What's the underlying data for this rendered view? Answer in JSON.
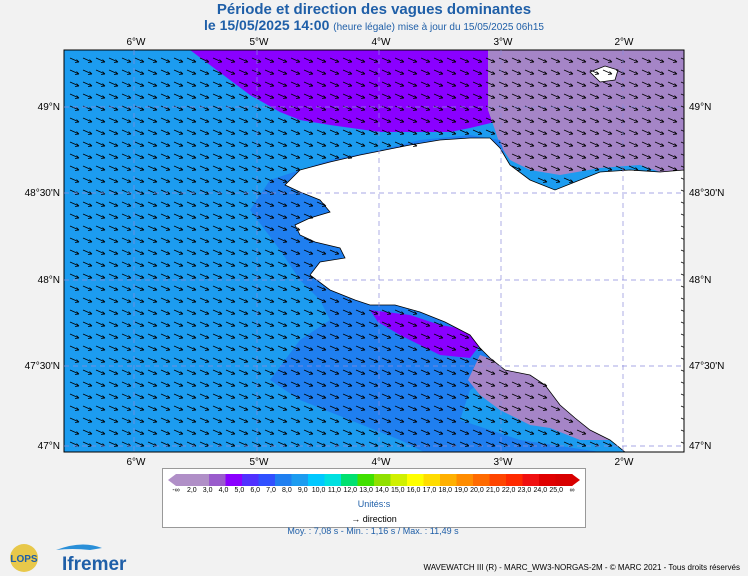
{
  "header": {
    "title": "Période et direction des vagues dominantes",
    "date_line": "le 15/05/2025 14:00",
    "update_note": "(heure légale) mise à jour du 15/05/2025 06h15"
  },
  "map": {
    "longitude_labels": [
      "6°W",
      "5°W",
      "4°W",
      "3°W",
      "2°W"
    ],
    "latitude_labels": [
      "49°N",
      "48°30'N",
      "48°N",
      "47°30'N",
      "47°N"
    ]
  },
  "colorbar": {
    "labels": [
      "-∞",
      "2,0",
      "3,0",
      "4,0",
      "5,0",
      "6,0",
      "7,0",
      "8,0",
      "9,0",
      "10,0",
      "11,0",
      "12,0",
      "13,0",
      "14,0",
      "15,0",
      "16,0",
      "17,0",
      "18,0",
      "19,0",
      "20,0",
      "21,0",
      "22,0",
      "23,0",
      "24,0",
      "25,0",
      "∞"
    ],
    "colors": [
      "#b08fc7",
      "#b08fc7",
      "#9a5ccc",
      "#8a00ff",
      "#5030ff",
      "#3050ff",
      "#1f7ff0",
      "#1c9cf0",
      "#00c8ff",
      "#00e0e0",
      "#00e070",
      "#40e000",
      "#90e000",
      "#d0f000",
      "#ffff00",
      "#ffdc00",
      "#ffb000",
      "#ff8c00",
      "#ff6a00",
      "#ff4500",
      "#ff2a00",
      "#f01010",
      "#e00000",
      "#d80000"
    ],
    "unit": "Unités:s",
    "direction_legend": "direction"
  },
  "stats": "Moy. : 7,08 s   -   Min. : 1,16 s / Max. : 11,49 s",
  "logos": {
    "lops": "LOPS",
    "ifremer": "Ifremer"
  },
  "footer": "WAVEWATCH III (R) - MARC_WW3-NORGAS-2M - © MARC 2021 - Tous droits réservés",
  "palette": {
    "ocean": "#1c9cf0",
    "coastal": "#1f7ff0",
    "north_purple": "#8a00ff",
    "channel": "#a07cc7",
    "land": "#ffffff",
    "arrow": "#000000"
  }
}
